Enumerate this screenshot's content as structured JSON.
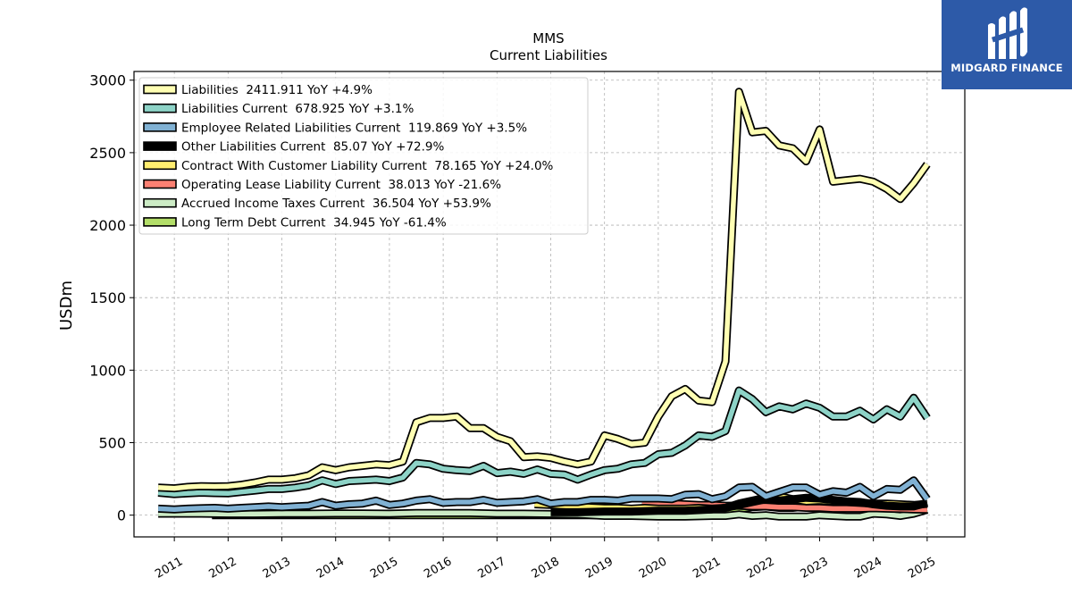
{
  "chart_data": {
    "type": "line",
    "title": "MMS",
    "subtitle": "Current  Liabilities",
    "ylabel": "USDm",
    "xlabel": "",
    "ylim": [
      -150,
      3060
    ],
    "xlim": [
      2010.25,
      2025.7
    ],
    "yticks": [
      0,
      500,
      1000,
      1500,
      2000,
      2500,
      3000
    ],
    "xticks": [
      2011,
      2012,
      2013,
      2014,
      2015,
      2016,
      2017,
      2018,
      2019,
      2020,
      2021,
      2022,
      2023,
      2024,
      2025
    ],
    "grid": true,
    "legend_position": "top-left",
    "series": [
      {
        "name": "Liabilities  2411.911 YoY +4.9%",
        "color": "#ffffb3",
        "x": [
          2010.7,
          2011.0,
          2011.25,
          2011.5,
          2011.75,
          2012.0,
          2012.25,
          2012.5,
          2012.75,
          2013.0,
          2013.25,
          2013.5,
          2013.75,
          2014.0,
          2014.25,
          2014.5,
          2014.75,
          2015.0,
          2015.25,
          2015.5,
          2015.75,
          2016.0,
          2016.25,
          2016.5,
          2016.75,
          2017.0,
          2017.25,
          2017.5,
          2017.75,
          2018.0,
          2018.25,
          2018.5,
          2018.75,
          2019.0,
          2019.25,
          2019.5,
          2019.75,
          2020.0,
          2020.25,
          2020.5,
          2020.75,
          2021.0,
          2021.25,
          2021.5,
          2021.75,
          2022.0,
          2022.25,
          2022.5,
          2022.75,
          2023.0,
          2023.25,
          2023.5,
          2023.75,
          2024.0,
          2024.25,
          2024.5,
          2024.75,
          2025.0
        ],
        "values": [
          190,
          185,
          195,
          200,
          198,
          200,
          210,
          225,
          245,
          245,
          255,
          275,
          330,
          310,
          330,
          340,
          350,
          345,
          370,
          640,
          670,
          670,
          680,
          600,
          600,
          540,
          510,
          400,
          405,
          395,
          370,
          350,
          370,
          550,
          525,
          490,
          500,
          680,
          820,
          870,
          790,
          780,
          1060,
          2920,
          2640,
          2650,
          2550,
          2530,
          2440,
          2660,
          2300,
          2310,
          2320,
          2300,
          2250,
          2180,
          2290,
          2420
        ]
      },
      {
        "name": "Liabilities Current  678.925 YoY +3.1%",
        "color": "#8dd3c7",
        "x": [
          2010.7,
          2011.0,
          2011.25,
          2011.5,
          2011.75,
          2012.0,
          2012.25,
          2012.5,
          2012.75,
          2013.0,
          2013.25,
          2013.5,
          2013.75,
          2014.0,
          2014.25,
          2014.5,
          2014.75,
          2015.0,
          2015.25,
          2015.5,
          2015.75,
          2016.0,
          2016.25,
          2016.5,
          2016.75,
          2017.0,
          2017.25,
          2017.5,
          2017.75,
          2018.0,
          2018.25,
          2018.5,
          2018.75,
          2019.0,
          2019.25,
          2019.5,
          2019.75,
          2020.0,
          2020.25,
          2020.5,
          2020.75,
          2021.0,
          2021.25,
          2021.5,
          2021.75,
          2022.0,
          2022.25,
          2022.5,
          2022.75,
          2023.0,
          2023.25,
          2023.5,
          2023.75,
          2024.0,
          2024.25,
          2024.5,
          2024.75,
          2025.0
        ],
        "values": [
          155,
          145,
          150,
          155,
          152,
          150,
          160,
          170,
          180,
          180,
          190,
          205,
          240,
          215,
          235,
          240,
          245,
          235,
          260,
          360,
          350,
          320,
          310,
          305,
          340,
          290,
          300,
          285,
          315,
          285,
          280,
          245,
          280,
          310,
          320,
          350,
          360,
          420,
          430,
          480,
          550,
          540,
          580,
          860,
          800,
          710,
          750,
          730,
          770,
          740,
          680,
          680,
          720,
          660,
          730,
          680,
          810,
          670
        ]
      },
      {
        "name": "Employee Related Liabilities Current  119.869 YoY +3.5%",
        "color": "#80b1d3",
        "x": [
          2010.7,
          2011.0,
          2011.25,
          2011.5,
          2011.75,
          2012.0,
          2012.25,
          2012.5,
          2012.75,
          2013.0,
          2013.25,
          2013.5,
          2013.75,
          2014.0,
          2014.25,
          2014.5,
          2014.75,
          2015.0,
          2015.25,
          2015.5,
          2015.75,
          2016.0,
          2016.25,
          2016.5,
          2016.75,
          2017.0,
          2017.25,
          2017.5,
          2017.75,
          2018.0,
          2018.25,
          2018.5,
          2018.75,
          2019.0,
          2019.25,
          2019.5,
          2019.75,
          2020.0,
          2020.25,
          2020.5,
          2020.75,
          2021.0,
          2021.25,
          2021.5,
          2021.75,
          2022.0,
          2022.25,
          2022.5,
          2022.75,
          2023.0,
          2023.25,
          2023.5,
          2023.75,
          2024.0,
          2024.25,
          2024.5,
          2024.75,
          2025.0
        ],
        "values": [
          45,
          40,
          45,
          48,
          50,
          45,
          50,
          55,
          60,
          55,
          60,
          65,
          90,
          65,
          75,
          80,
          100,
          70,
          80,
          100,
          110,
          85,
          90,
          90,
          105,
          85,
          90,
          95,
          110,
          80,
          90,
          90,
          105,
          105,
          100,
          115,
          115,
          115,
          110,
          140,
          145,
          110,
          130,
          190,
          195,
          130,
          160,
          190,
          190,
          140,
          165,
          155,
          195,
          130,
          180,
          175,
          240,
          110
        ]
      },
      {
        "name": "Other Liabilities Current  85.07 YoY +72.9%",
        "color": "#000000",
        "x": [
          2018.0,
          2018.5,
          2019.0,
          2019.5,
          2020.0,
          2020.5,
          2021.0,
          2021.25,
          2021.5,
          2021.75,
          2022.0,
          2022.25,
          2022.5,
          2022.75,
          2023.0,
          2023.25,
          2023.5,
          2023.75,
          2024.0,
          2024.25,
          2024.5,
          2024.75,
          2025.0
        ],
        "values": [
          20,
          20,
          25,
          25,
          30,
          30,
          40,
          50,
          70,
          90,
          110,
          100,
          110,
          120,
          115,
          105,
          95,
          90,
          75,
          65,
          60,
          60,
          85
        ]
      },
      {
        "name": "Contract With Customer Liability Current  78.165 YoY +24.0%",
        "color": "#ffed6f",
        "x": [
          2017.7,
          2018.0,
          2018.25,
          2018.5,
          2018.75,
          2019.0,
          2019.25,
          2019.5,
          2019.75,
          2020.0,
          2020.25,
          2020.5,
          2020.75,
          2021.0,
          2021.25,
          2021.5,
          2021.75,
          2022.0,
          2022.25,
          2022.5,
          2022.75,
          2023.0,
          2023.25,
          2023.5,
          2023.75,
          2024.0,
          2024.25,
          2024.5,
          2024.75,
          2025.0
        ],
        "values": [
          75,
          70,
          65,
          60,
          55,
          50,
          50,
          45,
          50,
          45,
          45,
          45,
          50,
          45,
          50,
          80,
          100,
          120,
          130,
          110,
          95,
          100,
          95,
          90,
          85,
          80,
          80,
          75,
          70,
          78
        ]
      },
      {
        "name": "Operating Lease Liability Current  38.013 YoY -21.6%",
        "color": "#fb8072",
        "x": [
          2019.7,
          2020.0,
          2020.25,
          2020.5,
          2020.75,
          2021.0,
          2021.25,
          2021.5,
          2021.75,
          2022.0,
          2022.25,
          2022.5,
          2022.75,
          2023.0,
          2023.25,
          2023.5,
          2023.75,
          2024.0,
          2024.25,
          2024.5,
          2024.75,
          2025.0
        ],
        "values": [
          90,
          85,
          80,
          75,
          70,
          70,
          65,
          65,
          60,
          60,
          55,
          55,
          50,
          50,
          45,
          45,
          45,
          48,
          45,
          42,
          40,
          38
        ]
      },
      {
        "name": "Accrued Income Taxes Current  36.504 YoY +53.9%",
        "color": "#ccebc5",
        "x": [
          2010.7,
          2011.0,
          2011.5,
          2012.0,
          2012.5,
          2013.0,
          2013.5,
          2014.0,
          2014.5,
          2015.0,
          2015.5,
          2016.0,
          2016.5,
          2017.0,
          2017.5,
          2018.0,
          2018.5,
          2019.0,
          2019.5,
          2020.0,
          2020.5,
          2021.0,
          2021.25,
          2021.5,
          2021.75,
          2022.0,
          2022.25,
          2022.5,
          2022.75,
          2023.0,
          2023.25,
          2023.5,
          2023.75,
          2024.0,
          2024.25,
          2024.5,
          2024.75,
          2025.0
        ],
        "values": [
          10,
          10,
          10,
          8,
          8,
          10,
          10,
          12,
          12,
          10,
          15,
          15,
          15,
          10,
          10,
          8,
          5,
          -5,
          -5,
          -10,
          -10,
          -5,
          -5,
          5,
          -5,
          0,
          -10,
          -10,
          -10,
          0,
          -5,
          -10,
          -10,
          10,
          5,
          -5,
          10,
          37
        ]
      },
      {
        "name": "Long Term Debt Current  34.945 YoY -61.4%",
        "color": "#b3de69",
        "x": [
          2011.7,
          2012.0,
          2013.0,
          2014.0,
          2015.0,
          2016.0,
          2017.0,
          2018.0,
          2018.5,
          2019.0,
          2019.5,
          2020.0,
          2020.25,
          2020.5,
          2020.75,
          2021.0,
          2021.25,
          2021.5,
          2021.75,
          2022.0,
          2022.25,
          2022.5,
          2022.75,
          2023.0,
          2023.25,
          2023.5,
          2023.75,
          2024.0,
          2024.25,
          2024.5,
          2024.75,
          2025.0
        ],
        "values": [
          0,
          0,
          0,
          0,
          0,
          0,
          0,
          0,
          0,
          0,
          0,
          5,
          5,
          5,
          5,
          10,
          20,
          40,
          55,
          60,
          50,
          50,
          60,
          70,
          75,
          75,
          75,
          75,
          70,
          40,
          35,
          35
        ]
      }
    ]
  },
  "logo": {
    "text": "MIDGARD FINANCE"
  }
}
